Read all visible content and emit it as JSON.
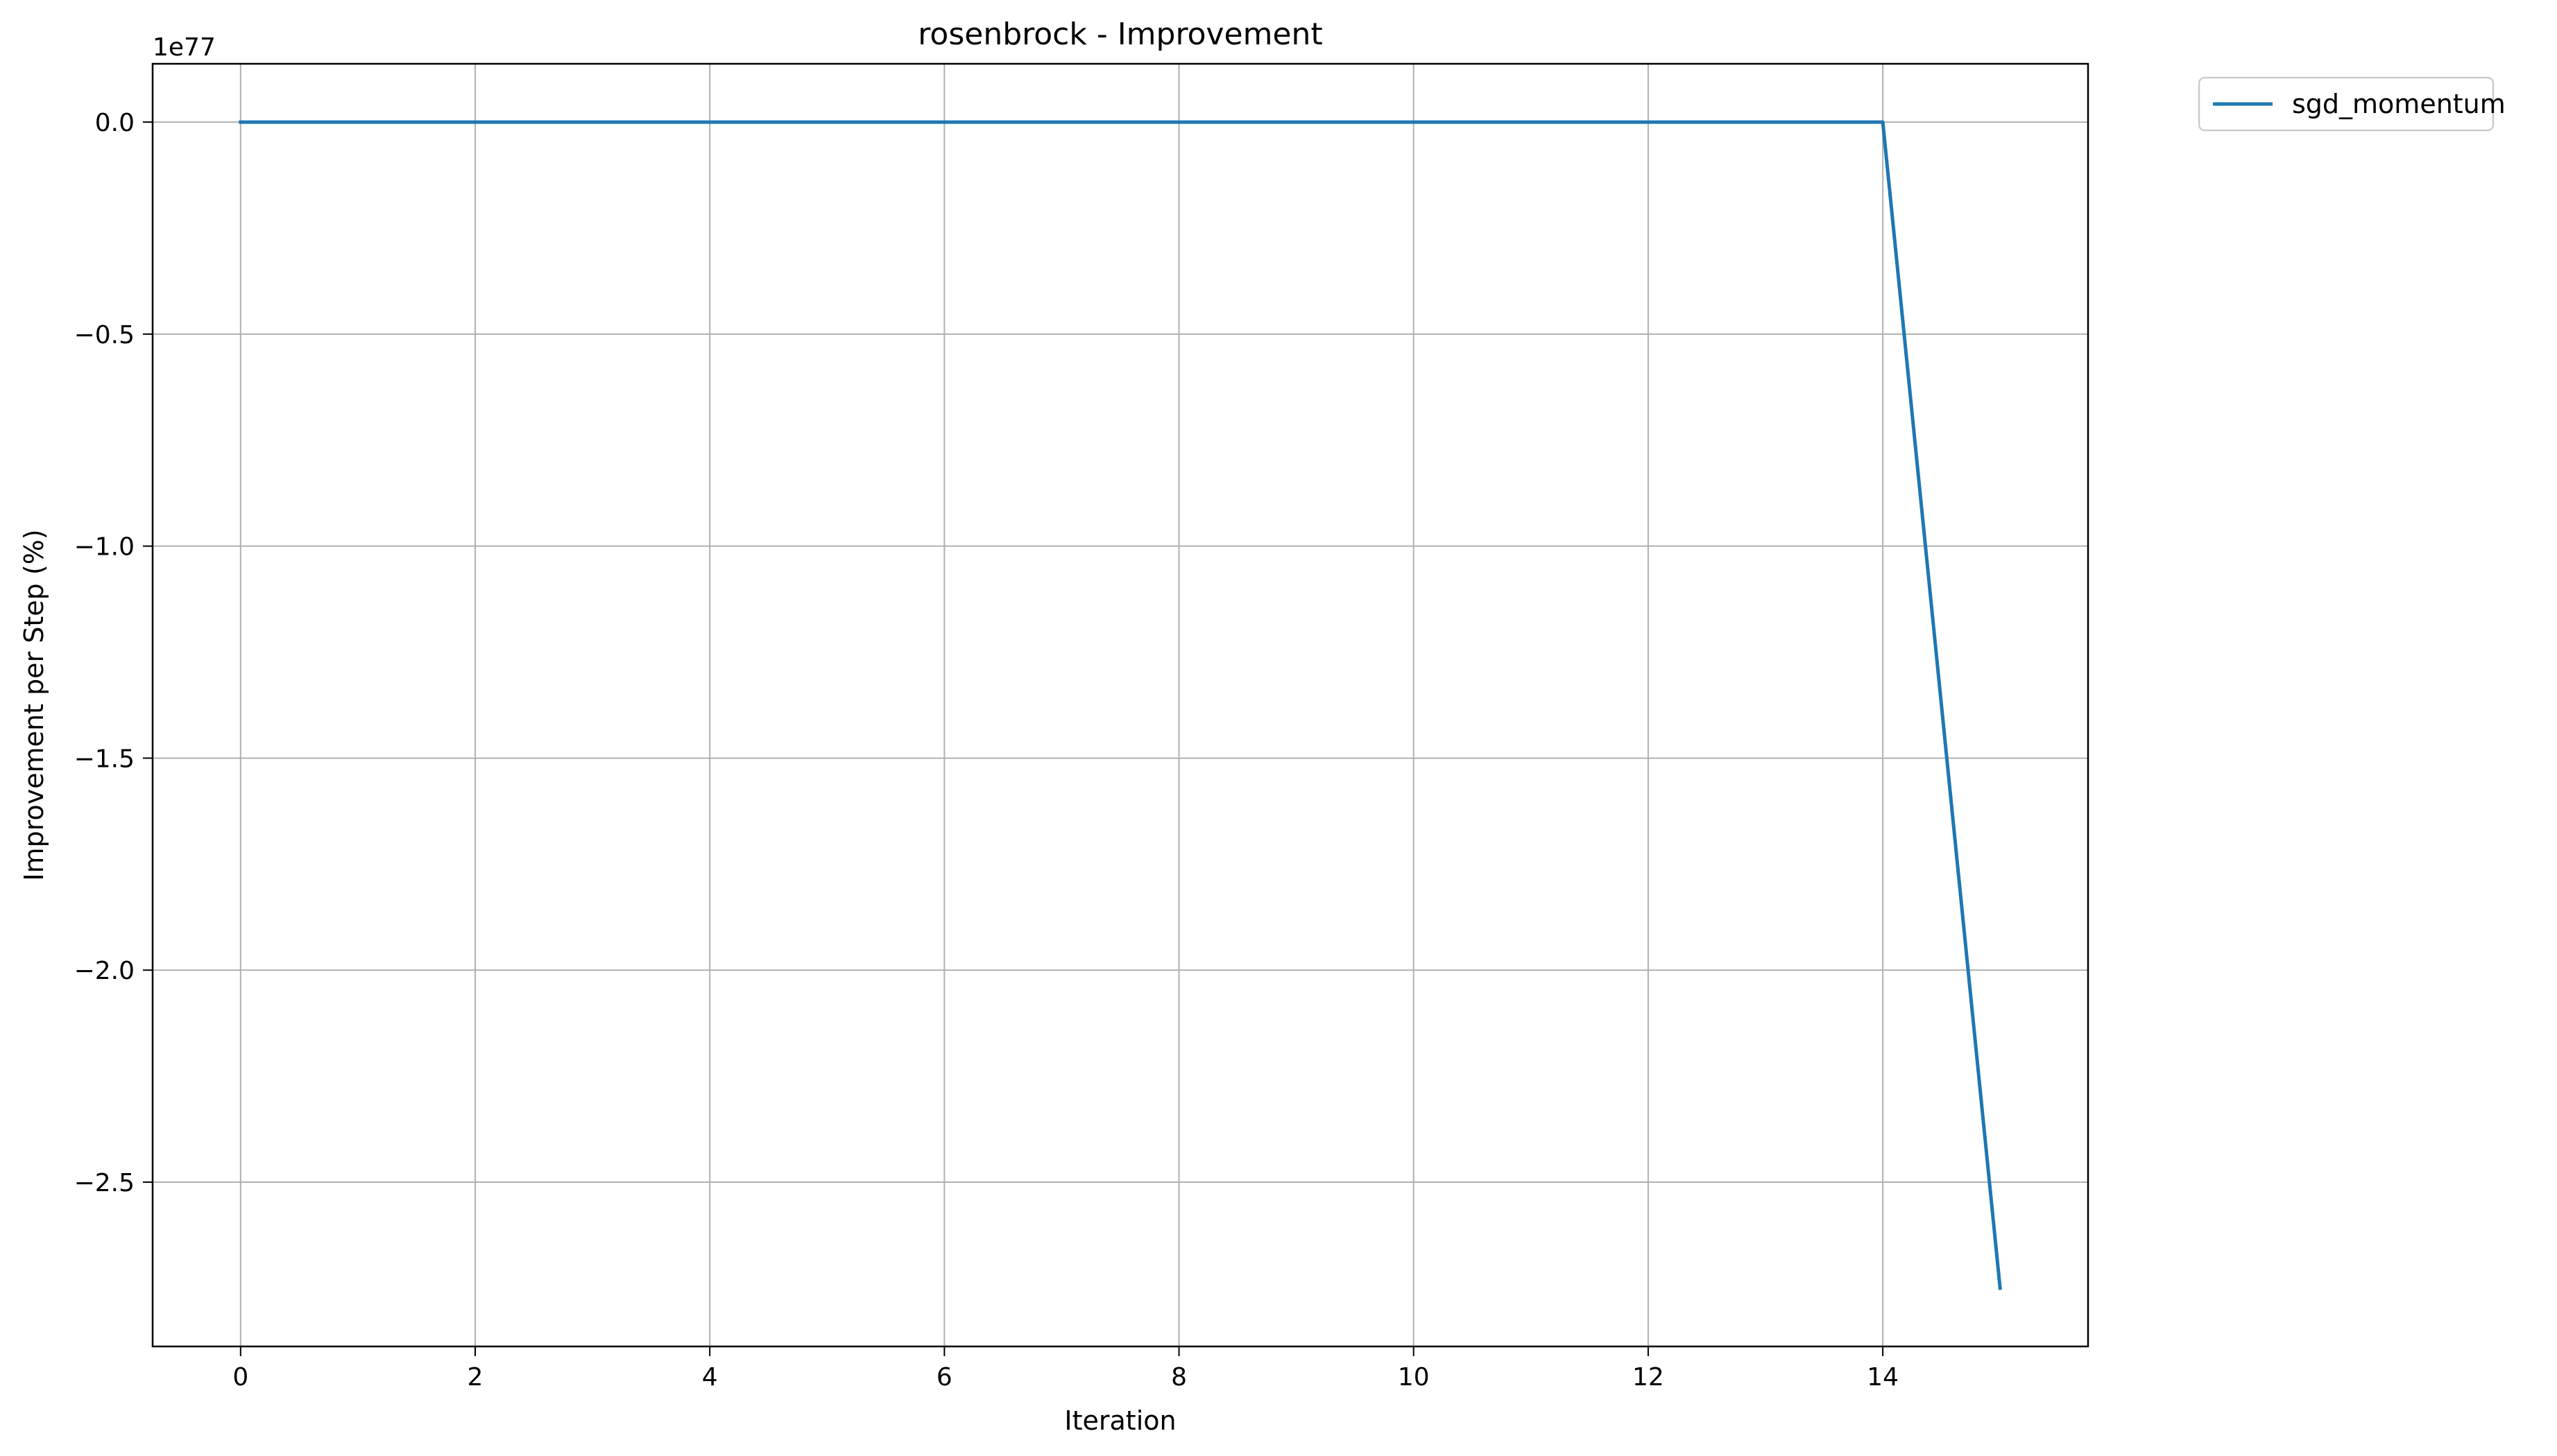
{
  "chart_data": {
    "type": "line",
    "title": "rosenbrock - Improvement",
    "xlabel": "Iteration",
    "ylabel": "Improvement per Step (%)",
    "y_offset_label": "1e77",
    "y_scale_exponent": 77,
    "xlim": [
      -0.75,
      15.75
    ],
    "ylim": [
      -2.8875,
      0.1375
    ],
    "x_ticks": [
      0,
      2,
      4,
      6,
      8,
      10,
      12,
      14
    ],
    "x_tick_labels": [
      "0",
      "2",
      "4",
      "6",
      "8",
      "10",
      "12",
      "14"
    ],
    "y_ticks": [
      0.0,
      -0.5,
      -1.0,
      -1.5,
      -2.0,
      -2.5
    ],
    "y_tick_labels": [
      "0.0",
      "−0.5",
      "−1.0",
      "−1.5",
      "−2.0",
      "−2.5"
    ],
    "grid": true,
    "legend_position": "outside-top-right",
    "series": [
      {
        "name": "sgd_momentum",
        "color": "#1f77b4",
        "x": [
          0,
          1,
          2,
          3,
          4,
          5,
          6,
          7,
          8,
          9,
          10,
          11,
          12,
          13,
          14,
          15
        ],
        "y": [
          0,
          0,
          0,
          0,
          0,
          0,
          0,
          0,
          0,
          0,
          0,
          0,
          0,
          0,
          0,
          -2.75
        ]
      }
    ]
  }
}
